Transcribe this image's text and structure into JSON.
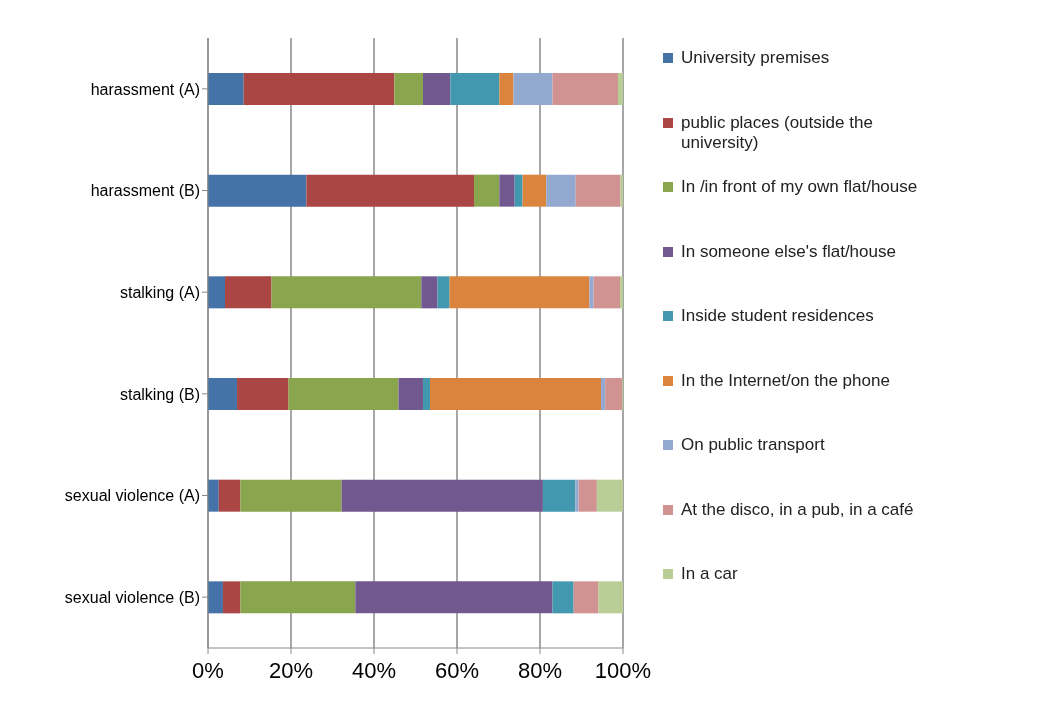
{
  "chart_data": {
    "type": "bar",
    "orientation": "horizontal",
    "stacked": true,
    "categories": [
      "harassment (A)",
      "harassment (B)",
      "stalking (A)",
      "stalking (B)",
      "sexual violence (A)",
      "sexual violence (B)"
    ],
    "series": [
      {
        "name": "University premises",
        "color": "#4572a7",
        "values": [
          8.6,
          23.7,
          4.1,
          7.0,
          2.6,
          3.6
        ]
      },
      {
        "name": "public places (outside the university)",
        "color": "#aa4643",
        "values": [
          36.3,
          40.4,
          11.2,
          12.4,
          5.2,
          4.2
        ]
      },
      {
        "name": "In /in front of my own flat/house",
        "color": "#89a54e",
        "values": [
          6.9,
          6.1,
          36.1,
          26.5,
          24.4,
          27.7
        ]
      },
      {
        "name": "In someone else's flat/house",
        "color": "#71588f",
        "values": [
          6.6,
          3.7,
          3.9,
          5.9,
          48.5,
          47.5
        ]
      },
      {
        "name": "Inside student residences",
        "color": "#4198af",
        "values": [
          11.8,
          1.9,
          2.9,
          1.7,
          7.8,
          5.1
        ]
      },
      {
        "name": "In the Internet/on the phone",
        "color": "#db843d",
        "values": [
          3.4,
          5.7,
          33.7,
          41.2,
          0,
          0
        ]
      },
      {
        "name": "On public transport",
        "color": "#93a9cf",
        "values": [
          9.4,
          7.1,
          1.0,
          1.0,
          0.8,
          0
        ]
      },
      {
        "name": "At the disco, in a pub, in a café",
        "color": "#d19392",
        "values": [
          15.8,
          10.8,
          6.4,
          4.1,
          4.4,
          6.0
        ]
      },
      {
        "name": "In a car",
        "color": "#b9cd96",
        "values": [
          1.2,
          0.6,
          0.7,
          0.2,
          6.3,
          5.9
        ]
      }
    ],
    "xlim": [
      0,
      100
    ],
    "xticks": [
      {
        "value": 0,
        "label": "0%"
      },
      {
        "value": 20,
        "label": "20%"
      },
      {
        "value": 40,
        "label": "40%"
      },
      {
        "value": 60,
        "label": "60%"
      },
      {
        "value": 80,
        "label": "80%"
      },
      {
        "value": 100,
        "label": "100%"
      }
    ],
    "grid": "x",
    "legend": "right"
  }
}
